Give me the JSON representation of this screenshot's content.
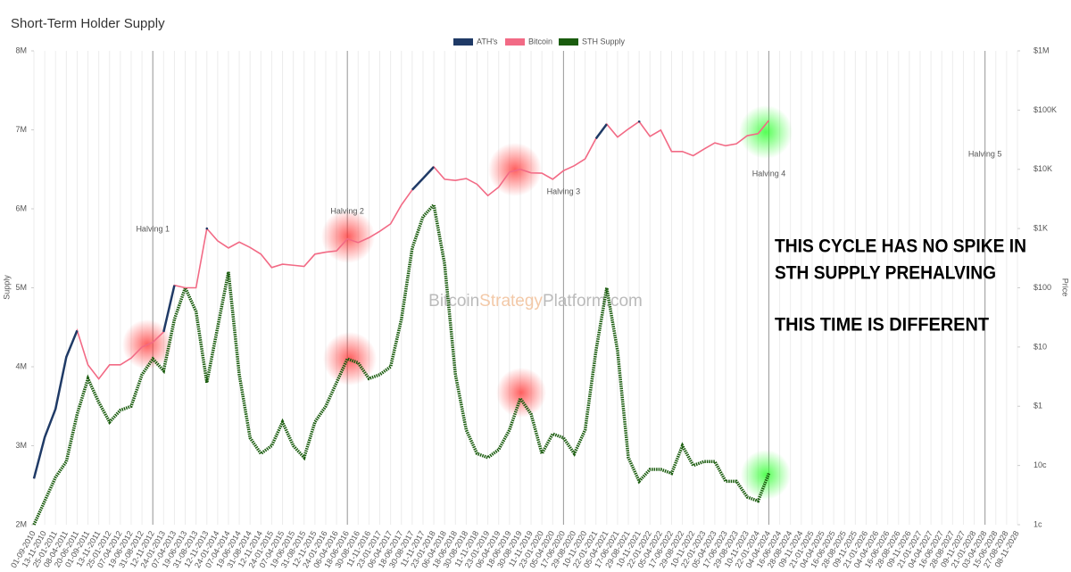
{
  "chart_data": {
    "type": "line",
    "title": "Short-Term Holder Supply",
    "y_label": "Supply",
    "y2_label": "Price",
    "categories": [
      "01-09-2010",
      "13-11-2010",
      "25-01-2011",
      "08-04-2011",
      "20-06-2011",
      "01-09-2011",
      "13-11-2011",
      "25-01-2012",
      "07-04-2012",
      "19-06-2012",
      "31-08-2012",
      "12-11-2012",
      "24-01-2013",
      "07-04-2013",
      "19-06-2013",
      "31-08-2013",
      "12-11-2013",
      "24-01-2014",
      "07-04-2014",
      "19-06-2014",
      "31-08-2014",
      "12-11-2014",
      "24-01-2015",
      "07-04-2015",
      "19-06-2015",
      "31-08-2015",
      "12-11-2015",
      "24-01-2016",
      "06-04-2016",
      "18-06-2016",
      "30-08-2016",
      "11-11-2016",
      "23-01-2017",
      "06-04-2017",
      "18-06-2017",
      "30-08-2017",
      "11-11-2017",
      "23-01-2018",
      "06-04-2018",
      "18-06-2018",
      "30-08-2018",
      "11-11-2018",
      "23-01-2019",
      "06-04-2019",
      "18-06-2019",
      "30-08-2019",
      "11-11-2019",
      "23-01-2020",
      "05-04-2020",
      "17-06-2020",
      "29-08-2020",
      "10-11-2020",
      "22-01-2021",
      "05-04-2021",
      "17-06-2021",
      "29-08-2021",
      "10-11-2021",
      "22-01-2022",
      "05-04-2022",
      "17-06-2022",
      "29-08-2022",
      "10-11-2022",
      "22-01-2023",
      "05-04-2023",
      "17-06-2023",
      "29-08-2023",
      "10-11-2023",
      "22-01-2024",
      "04-04-2024",
      "16-06-2024",
      "28-08-2024",
      "09-11-2024",
      "21-01-2025",
      "04-04-2025",
      "16-06-2025",
      "28-08-2025",
      "09-11-2025",
      "21-01-2026",
      "04-04-2026",
      "16-06-2026",
      "28-08-2026",
      "09-11-2026",
      "21-01-2027",
      "04-04-2027",
      "16-06-2027",
      "28-08-2027",
      "09-11-2027",
      "21-01-2028",
      "03-04-2028",
      "15-06-2028",
      "27-08-2028",
      "08-11-2028"
    ],
    "series": [
      {
        "name": "ATH's",
        "color": "#1f3a66",
        "axis": "y2",
        "values": [
          0.06,
          0.3,
          0.9,
          6.8,
          19,
          null,
          null,
          null,
          null,
          null,
          null,
          null,
          18,
          110,
          null,
          null,
          1000,
          null,
          null,
          null,
          null,
          null,
          null,
          null,
          null,
          null,
          null,
          null,
          null,
          null,
          null,
          null,
          null,
          null,
          null,
          4500,
          7000,
          11000,
          null,
          null,
          null,
          null,
          null,
          null,
          null,
          null,
          null,
          null,
          null,
          null,
          null,
          null,
          33000,
          58000,
          null,
          null,
          64000,
          null,
          null,
          null,
          null,
          null,
          null,
          null,
          null,
          null,
          null,
          null,
          null,
          null,
          null,
          null,
          null,
          null,
          null,
          null,
          null,
          null,
          null,
          null,
          null,
          null,
          null,
          null,
          null,
          null,
          null,
          null,
          null,
          null,
          null,
          null
        ]
      },
      {
        "name": "Bitcoin",
        "color": "#f26a85",
        "axis": "y2",
        "values": [
          0.06,
          0.3,
          0.9,
          6.8,
          19,
          5,
          2.9,
          5,
          5,
          6.5,
          10,
          12,
          18,
          110,
          100,
          100,
          1000,
          620,
          470,
          590,
          480,
          370,
          220,
          250,
          240,
          230,
          370,
          400,
          420,
          670,
          580,
          700,
          900,
          1200,
          2500,
          4500,
          7000,
          11000,
          6800,
          6500,
          7000,
          5600,
          3600,
          5000,
          9000,
          10000,
          8700,
          8600,
          6800,
          9500,
          11500,
          15000,
          33000,
          58000,
          35000,
          48000,
          64000,
          36000,
          46000,
          20000,
          20000,
          17000,
          22000,
          28000,
          25000,
          27000,
          37000,
          40000,
          67000,
          null,
          null,
          null,
          null,
          null,
          null,
          null,
          null,
          null,
          null,
          null,
          null,
          null,
          null,
          null,
          null,
          null,
          null,
          null,
          null,
          null,
          null,
          null
        ]
      },
      {
        "name": "STH Supply",
        "color": "#1a5c0e",
        "values": [
          2.0,
          2.3,
          2.6,
          2.8,
          3.4,
          3.85,
          3.55,
          3.3,
          3.45,
          3.5,
          3.9,
          4.1,
          3.95,
          4.6,
          5.0,
          4.7,
          3.8,
          4.5,
          5.2,
          3.9,
          3.1,
          2.9,
          3.0,
          3.3,
          3.0,
          2.85,
          3.3,
          3.5,
          3.8,
          4.1,
          4.05,
          3.85,
          3.9,
          4.0,
          4.6,
          5.5,
          5.9,
          6.05,
          5.3,
          3.9,
          3.2,
          2.9,
          2.85,
          2.95,
          3.2,
          3.6,
          3.4,
          2.9,
          3.15,
          3.1,
          2.9,
          3.2,
          4.2,
          5.0,
          4.2,
          2.85,
          2.55,
          2.7,
          2.7,
          2.65,
          3.0,
          2.75,
          2.8,
          2.8,
          2.55,
          2.55,
          2.35,
          2.3,
          2.65,
          null,
          null,
          null,
          null,
          null,
          null,
          null,
          null,
          null,
          null,
          null,
          null,
          null,
          null,
          null,
          null,
          null,
          null,
          null,
          null,
          null,
          null,
          null
        ]
      }
    ],
    "ylim": [
      2,
      8
    ],
    "yticks": [
      {
        "value": 2,
        "label": "2M"
      },
      {
        "value": 3,
        "label": "3M"
      },
      {
        "value": 4,
        "label": "4M"
      },
      {
        "value": 5,
        "label": "5M"
      },
      {
        "value": 6,
        "label": "6M"
      },
      {
        "value": 7,
        "label": "7M"
      },
      {
        "value": 8,
        "label": "8M"
      }
    ],
    "y2lim": [
      0.01,
      1000000
    ],
    "y2scale": "log",
    "y2ticks": [
      {
        "value": 0.01,
        "label": "1c"
      },
      {
        "value": 0.1,
        "label": "10c"
      },
      {
        "value": 1,
        "label": "$1"
      },
      {
        "value": 10,
        "label": "$10"
      },
      {
        "value": 100,
        "label": "$100"
      },
      {
        "value": 1000,
        "label": "$1K"
      },
      {
        "value": 10000,
        "label": "$10K"
      },
      {
        "value": 100000,
        "label": "$100K"
      },
      {
        "value": 1000000,
        "label": "$1M"
      }
    ],
    "grid": true,
    "legend": "top",
    "halvings": [
      {
        "label": "Halving 1",
        "x": "12-11-2012"
      },
      {
        "label": "Halving 2",
        "x": "18-06-2016"
      },
      {
        "label": "Halving 3",
        "x": "17-06-2020"
      },
      {
        "label": "Halving 4",
        "x": "04-04-2024"
      },
      {
        "label": "Halving 5",
        "x": "03-04-2028"
      }
    ],
    "annotations": [
      "THIS CYCLE HAS NO SPIKE IN",
      "STH SUPPLY PREHALVING",
      "THIS TIME IS DIFFERENT"
    ],
    "watermark": [
      "Bitcoin",
      "Strategy",
      "Platform.com"
    ]
  }
}
